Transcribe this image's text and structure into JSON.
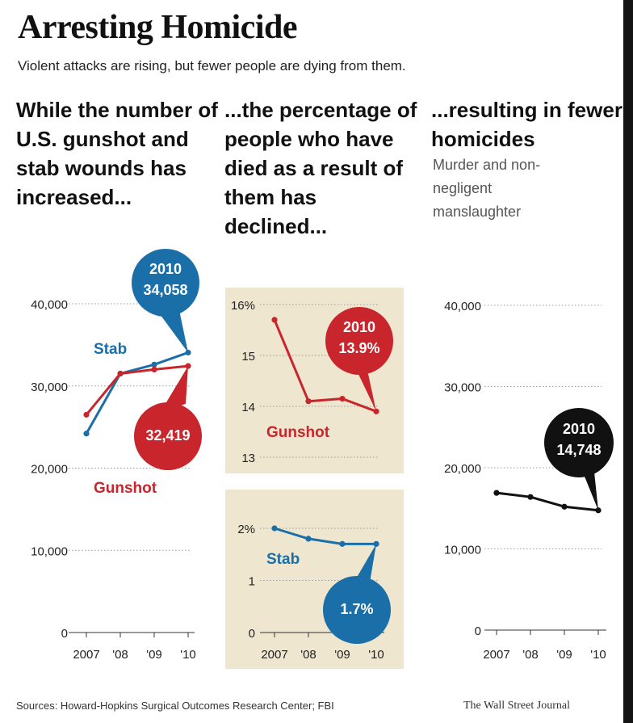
{
  "title": "Arresting Homicide",
  "subtitle": "Violent attacks are rising, but fewer people are dying from them.",
  "panel_headings": [
    "While the number of U.S. gunshot and stab wounds has increased...",
    "...the percentage of people who have died as a result of them has declined...",
    "...resulting in fewer homicides"
  ],
  "panel3_subheading": "Murder and non-negligent manslaughter",
  "sources": "Sources: Howard-Hopkins Surgical Outcomes Research Center; FBI",
  "credit": "The Wall Street Journal",
  "colors": {
    "stab": "#1b6fa8",
    "gunshot": "#c8262c",
    "homicide": "#111111",
    "panel_bg": "#efe6cf"
  },
  "chart_data": [
    {
      "type": "line",
      "x": [
        "2007",
        "'08",
        "'09",
        "'10"
      ],
      "ylim": [
        0,
        40000
      ],
      "y_ticks": [
        "0",
        "10,000",
        "20,000",
        "30,000",
        "40,000"
      ],
      "series": [
        {
          "name": "Stab",
          "values": [
            24200,
            31500,
            32600,
            34058
          ]
        },
        {
          "name": "Gunshot",
          "values": [
            26500,
            31500,
            32000,
            32419
          ]
        }
      ],
      "callouts": [
        {
          "series": "Stab",
          "lines": [
            "2010",
            "34,058"
          ]
        },
        {
          "series": "Gunshot",
          "lines": [
            "32,419"
          ]
        }
      ]
    },
    {
      "type": "line",
      "x": [
        "2007",
        "'08",
        "'09",
        "'10"
      ],
      "ylim": [
        13,
        16
      ],
      "y_ticks": [
        "13",
        "14",
        "15",
        "16%"
      ],
      "series": [
        {
          "name": "Gunshot",
          "values": [
            15.7,
            14.1,
            14.15,
            13.9
          ]
        }
      ],
      "callouts": [
        {
          "series": "Gunshot",
          "lines": [
            "2010",
            "13.9%"
          ]
        }
      ]
    },
    {
      "type": "line",
      "x": [
        "2007",
        "'08",
        "'09",
        "'10"
      ],
      "ylim": [
        0,
        2
      ],
      "y_ticks": [
        "0",
        "1",
        "2%"
      ],
      "series": [
        {
          "name": "Stab",
          "values": [
            2.0,
            1.8,
            1.7,
            1.7
          ]
        }
      ],
      "callouts": [
        {
          "series": "Stab",
          "lines": [
            "1.7%"
          ]
        }
      ]
    },
    {
      "type": "line",
      "x": [
        "2007",
        "'08",
        "'09",
        "'10"
      ],
      "ylim": [
        0,
        40000
      ],
      "y_ticks": [
        "0",
        "10,000",
        "20,000",
        "30,000",
        "40,000"
      ],
      "series": [
        {
          "values": [
            16900,
            16400,
            15200,
            14748
          ]
        }
      ],
      "callouts": [
        {
          "lines": [
            "2010",
            "14,748"
          ]
        }
      ]
    }
  ]
}
